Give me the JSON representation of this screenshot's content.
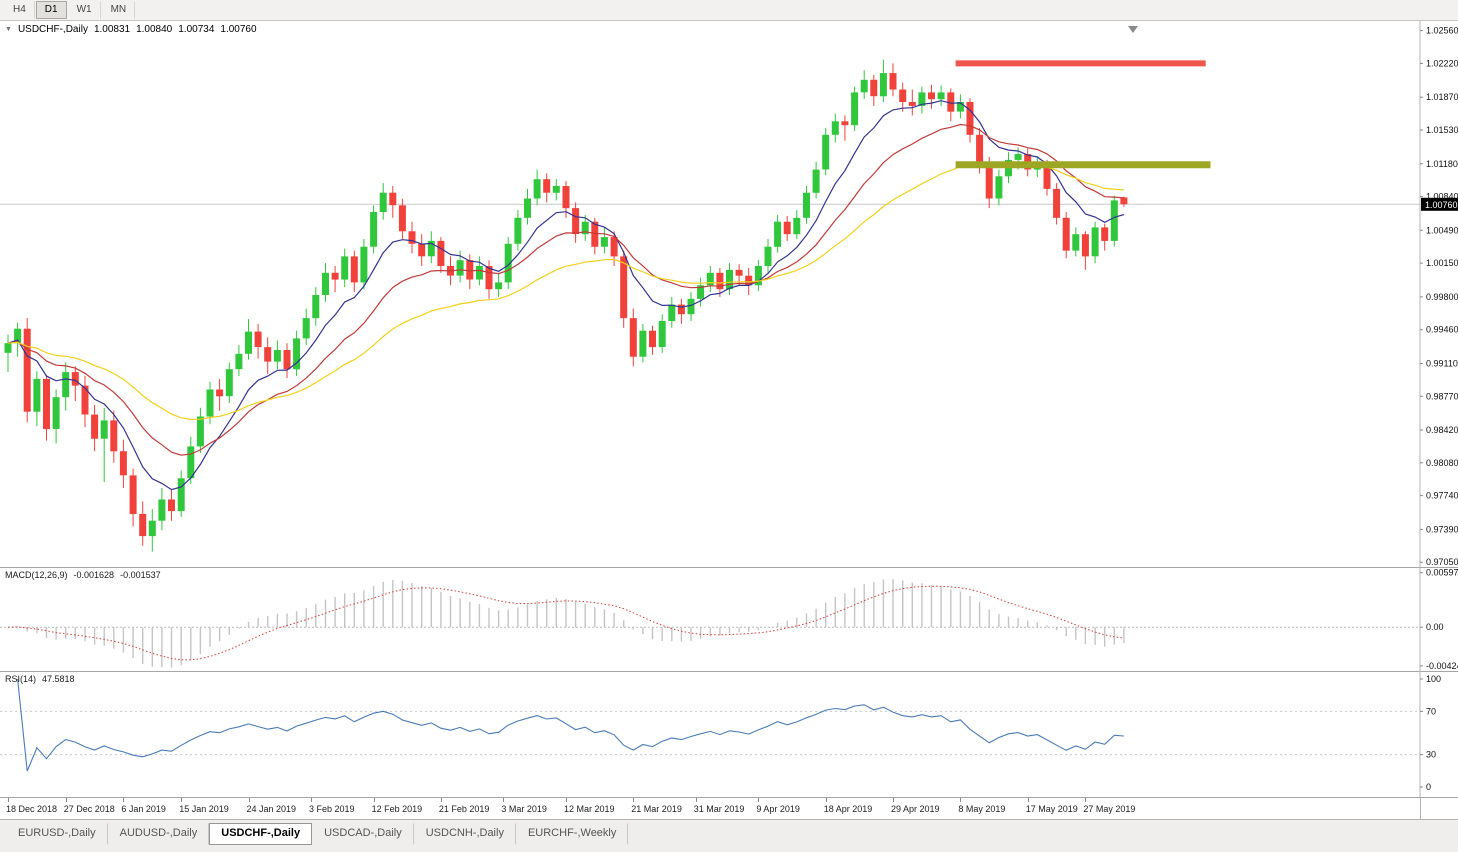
{
  "toolbar": {
    "timeframes": [
      {
        "label": "H4",
        "active": false
      },
      {
        "label": "D1",
        "active": true
      },
      {
        "label": "W1",
        "active": false
      },
      {
        "label": "MN",
        "active": false
      }
    ]
  },
  "chart_header": {
    "symbol": "USDCHF-,Daily",
    "open": "1.00831",
    "high": "1.00840",
    "low": "1.00734",
    "close": "1.00760"
  },
  "current_price": {
    "label": "1.00760",
    "value": 1.0076
  },
  "price_axis": {
    "labels": [
      "1.02560",
      "1.02220",
      "1.01870",
      "1.01530",
      "1.01180",
      "1.00840",
      "1.00490",
      "1.00150",
      "0.99800",
      "0.99460",
      "0.99110",
      "0.98770",
      "0.98420",
      "0.98080",
      "0.97740",
      "0.97390",
      "0.97050"
    ]
  },
  "macd": {
    "label": "MACD(12,26,9)",
    "main": "-0.001628",
    "signal": "-0.001537",
    "params": {
      "fast": 12,
      "slow": 26,
      "signal": 9
    },
    "scale": [
      {
        "text": "0.00597",
        "v": 0.00597
      },
      {
        "text": "0.00",
        "v": 0
      },
      {
        "text": "-0.00424",
        "v": -0.00424
      }
    ],
    "colors": {
      "histogram": "#c4c4c4",
      "signal_line": "#d43a3a"
    }
  },
  "rsi": {
    "label": "RSI(14)",
    "value": "47.5818",
    "period": 14,
    "color": "#4a7ab8",
    "levels": [
      70,
      30
    ],
    "scale": [
      {
        "text": "100",
        "v": 100
      },
      {
        "text": "70",
        "v": 70
      },
      {
        "text": "30",
        "v": 30
      },
      {
        "text": "0",
        "v": 0
      }
    ]
  },
  "date_axis": [
    {
      "label": "18 Dec 2018",
      "i": 0
    },
    {
      "label": "27 Dec 2018",
      "i": 6
    },
    {
      "label": "6 Jan 2019",
      "i": 12
    },
    {
      "label": "15 Jan 2019",
      "i": 18
    },
    {
      "label": "24 Jan 2019",
      "i": 25
    },
    {
      "label": "3 Feb 2019",
      "i": 31.5
    },
    {
      "label": "12 Feb 2019",
      "i": 38
    },
    {
      "label": "21 Feb 2019",
      "i": 45
    },
    {
      "label": "3 Mar 2019",
      "i": 51.5
    },
    {
      "label": "12 Mar 2019",
      "i": 58
    },
    {
      "label": "21 Mar 2019",
      "i": 65
    },
    {
      "label": "31 Mar 2019",
      "i": 71.5
    },
    {
      "label": "9 Apr 2019",
      "i": 78
    },
    {
      "label": "18 Apr 2019",
      "i": 85
    },
    {
      "label": "29 Apr 2019",
      "i": 92
    },
    {
      "label": "8 May 2019",
      "i": 99
    },
    {
      "label": "17 May 2019",
      "i": 106
    },
    {
      "label": "27 May 2019",
      "i": 112
    }
  ],
  "tabs": {
    "items": [
      {
        "label": "EURUSD-,Daily",
        "active": false
      },
      {
        "label": "AUDUSD-,Daily",
        "active": false
      },
      {
        "label": "USDCHF-,Daily",
        "active": true
      },
      {
        "label": "USDCAD-,Daily",
        "active": false
      },
      {
        "label": "USDCNH-,Daily",
        "active": false
      },
      {
        "label": "EURCHF-,Weekly",
        "active": false
      }
    ]
  },
  "chart_data": {
    "type": "candlestick",
    "symbol": "USDCHF",
    "timeframe": "Daily",
    "title": "USDCHF-,Daily",
    "y_range": [
      0.97,
      1.0266
    ],
    "up_color": "#30c73c",
    "down_color": "#f0413b",
    "moving_averages": [
      {
        "name": "ma-fast",
        "period": 8,
        "color": "#333392"
      },
      {
        "name": "ma-mid",
        "period": 17,
        "color": "#c23b3b"
      },
      {
        "name": "ma-slow",
        "period": 34,
        "color": "#f2cf1d"
      }
    ],
    "annotations": [
      {
        "name": "resistance-line",
        "price": 1.0222,
        "from_bar": 98.5,
        "to_bar": 124.5,
        "color": "#f0564d",
        "thickness": 6
      },
      {
        "name": "support-line",
        "price": 1.0117,
        "from_bar": 98.5,
        "to_bar": 125,
        "color": "#9ea723",
        "thickness": 7
      }
    ],
    "candles": [
      [
        0.9922,
        0.9941,
        0.9902,
        0.9932
      ],
      [
        0.9932,
        0.9953,
        0.9918,
        0.9947
      ],
      [
        0.9947,
        0.9958,
        0.985,
        0.9861
      ],
      [
        0.9861,
        0.9903,
        0.9846,
        0.9895
      ],
      [
        0.9895,
        0.9899,
        0.9831,
        0.9843
      ],
      [
        0.9843,
        0.9884,
        0.9828,
        0.9876
      ],
      [
        0.9876,
        0.9912,
        0.9862,
        0.9902
      ],
      [
        0.9902,
        0.9908,
        0.9872,
        0.9888
      ],
      [
        0.9888,
        0.9898,
        0.9845,
        0.9858
      ],
      [
        0.9858,
        0.9868,
        0.982,
        0.9833
      ],
      [
        0.9833,
        0.9865,
        0.9788,
        0.9852
      ],
      [
        0.9852,
        0.9862,
        0.9808,
        0.982
      ],
      [
        0.982,
        0.9832,
        0.9782,
        0.9795
      ],
      [
        0.9795,
        0.9802,
        0.9742,
        0.9755
      ],
      [
        0.9755,
        0.9768,
        0.9722,
        0.9732
      ],
      [
        0.9732,
        0.976,
        0.9716,
        0.9748
      ],
      [
        0.9748,
        0.9782,
        0.9738,
        0.977
      ],
      [
        0.977,
        0.978,
        0.9748,
        0.9758
      ],
      [
        0.9758,
        0.98,
        0.9752,
        0.9792
      ],
      [
        0.9792,
        0.9835,
        0.9786,
        0.9825
      ],
      [
        0.9825,
        0.9865,
        0.9818,
        0.9856
      ],
      [
        0.9856,
        0.9892,
        0.9848,
        0.9884
      ],
      [
        0.9884,
        0.9895,
        0.9862,
        0.9877
      ],
      [
        0.9877,
        0.9912,
        0.987,
        0.9905
      ],
      [
        0.9905,
        0.993,
        0.9898,
        0.9921
      ],
      [
        0.9921,
        0.9957,
        0.9915,
        0.9944
      ],
      [
        0.9944,
        0.9952,
        0.9916,
        0.9928
      ],
      [
        0.9928,
        0.9938,
        0.99,
        0.9913
      ],
      [
        0.9913,
        0.9935,
        0.9905,
        0.9925
      ],
      [
        0.9925,
        0.9932,
        0.9896,
        0.9905
      ],
      [
        0.9905,
        0.9945,
        0.9898,
        0.9937
      ],
      [
        0.9937,
        0.9968,
        0.993,
        0.9958
      ],
      [
        0.9958,
        0.999,
        0.995,
        0.9982
      ],
      [
        0.9982,
        1.0015,
        0.9975,
        1.0005
      ],
      [
        1.0005,
        1.0012,
        0.9985,
        0.9998
      ],
      [
        0.9998,
        1.003,
        0.999,
        1.0022
      ],
      [
        1.0022,
        1.0028,
        0.9985,
        0.9995
      ],
      [
        0.9995,
        1.004,
        0.9988,
        1.0032
      ],
      [
        1.0032,
        1.0075,
        1.0025,
        1.0068
      ],
      [
        1.0068,
        1.0098,
        1.006,
        1.0088
      ],
      [
        1.0088,
        1.0095,
        1.0062,
        1.0075
      ],
      [
        1.0075,
        1.0082,
        1.004,
        1.0048
      ],
      [
        1.0048,
        1.0058,
        1.0025,
        1.0035
      ],
      [
        1.0035,
        1.0045,
        1.0012,
        1.0022
      ],
      [
        1.0022,
        1.0048,
        1.0015,
        1.0038
      ],
      [
        1.0038,
        1.0042,
        1.0005,
        1.0012
      ],
      [
        1.0012,
        1.0022,
        0.9992,
        1.0002
      ],
      [
        1.0002,
        1.0028,
        0.9995,
        1.0018
      ],
      [
        1.0018,
        1.0024,
        0.9988,
        0.9998
      ],
      [
        0.9998,
        1.0022,
        0.9992,
        1.0012
      ],
      [
        1.0012,
        1.0018,
        0.9978,
        0.9988
      ],
      [
        0.9988,
        1.0005,
        0.998,
        0.9995
      ],
      [
        0.9995,
        1.0042,
        0.9988,
        1.0035
      ],
      [
        1.0035,
        1.007,
        1.0028,
        1.0062
      ],
      [
        1.0062,
        1.0092,
        1.0055,
        1.0082
      ],
      [
        1.0082,
        1.0112,
        1.0075,
        1.0102
      ],
      [
        1.0102,
        1.0108,
        1.0078,
        1.0088
      ],
      [
        1.0088,
        1.0102,
        1.008,
        1.0095
      ],
      [
        1.0095,
        1.01,
        1.0062,
        1.0072
      ],
      [
        1.0072,
        1.0078,
        1.0036,
        1.0045
      ],
      [
        1.0045,
        1.0065,
        1.0038,
        1.0058
      ],
      [
        1.0058,
        1.0062,
        1.0024,
        1.0032
      ],
      [
        1.0032,
        1.0052,
        1.0025,
        1.0042
      ],
      [
        1.0042,
        1.0048,
        1.0012,
        1.0022
      ],
      [
        1.0022,
        1.0028,
        0.9948,
        0.9958
      ],
      [
        0.9958,
        0.9968,
        0.9908,
        0.9918
      ],
      [
        0.9918,
        0.9952,
        0.9912,
        0.9945
      ],
      [
        0.9945,
        0.995,
        0.992,
        0.9928
      ],
      [
        0.9928,
        0.9962,
        0.9922,
        0.9955
      ],
      [
        0.9955,
        0.998,
        0.9948,
        0.9972
      ],
      [
        0.9972,
        0.9978,
        0.9952,
        0.9962
      ],
      [
        0.9962,
        0.9985,
        0.9955,
        0.9978
      ],
      [
        0.9978,
        1.0,
        0.997,
        0.9992
      ],
      [
        0.9992,
        1.0012,
        0.9985,
        1.0005
      ],
      [
        1.0005,
        1.001,
        0.998,
        0.9988
      ],
      [
        0.9988,
        1.0015,
        0.9982,
        1.0008
      ],
      [
        1.0008,
        1.0014,
        0.9992,
        1.0002
      ],
      [
        1.0002,
        1.001,
        0.9982,
        0.9992
      ],
      [
        0.9992,
        1.0018,
        0.9986,
        1.0012
      ],
      [
        1.0012,
        1.004,
        1.0005,
        1.0032
      ],
      [
        1.0032,
        1.0065,
        1.0026,
        1.0058
      ],
      [
        1.0058,
        1.0064,
        1.0038,
        1.0045
      ],
      [
        1.0045,
        1.007,
        1.004,
        1.0062
      ],
      [
        1.0062,
        1.0095,
        1.0056,
        1.0088
      ],
      [
        1.0088,
        1.012,
        1.0082,
        1.0112
      ],
      [
        1.0112,
        1.0155,
        1.0106,
        1.0148
      ],
      [
        1.0148,
        1.017,
        1.014,
        1.0162
      ],
      [
        1.0162,
        1.0168,
        1.0142,
        1.0158
      ],
      [
        1.0158,
        1.0198,
        1.0152,
        1.0192
      ],
      [
        1.0192,
        1.0215,
        1.0185,
        1.0205
      ],
      [
        1.0205,
        1.021,
        1.0178,
        1.0188
      ],
      [
        1.0188,
        1.0226,
        1.0182,
        1.0212
      ],
      [
        1.0212,
        1.0222,
        1.0188,
        1.0195
      ],
      [
        1.0195,
        1.0202,
        1.0172,
        1.0182
      ],
      [
        1.0182,
        1.0195,
        1.0168,
        1.0178
      ],
      [
        1.0178,
        1.0198,
        1.017,
        1.0192
      ],
      [
        1.0192,
        1.02,
        1.0175,
        1.0185
      ],
      [
        1.0185,
        1.0199,
        1.0178,
        1.0192
      ],
      [
        1.0192,
        1.0196,
        1.0162,
        1.0172
      ],
      [
        1.0172,
        1.019,
        1.0165,
        1.0182
      ],
      [
        1.0182,
        1.0186,
        1.014,
        1.0148
      ],
      [
        1.0148,
        1.0155,
        1.0108,
        1.0118
      ],
      [
        1.0118,
        1.0125,
        1.0072,
        1.0082
      ],
      [
        1.0082,
        1.0112,
        1.0075,
        1.0105
      ],
      [
        1.0105,
        1.013,
        1.0098,
        1.0122
      ],
      [
        1.0122,
        1.0135,
        1.0112,
        1.0128
      ],
      [
        1.0128,
        1.0134,
        1.0105,
        1.0112
      ],
      [
        1.0112,
        1.0126,
        1.0104,
        1.0118
      ],
      [
        1.0118,
        1.0122,
        1.0085,
        1.0092
      ],
      [
        1.0092,
        1.0098,
        1.0055,
        1.0062
      ],
      [
        1.0062,
        1.0068,
        1.002,
        1.0028
      ],
      [
        1.0028,
        1.0052,
        1.0022,
        1.0045
      ],
      [
        1.0045,
        1.0048,
        1.0008,
        1.0022
      ],
      [
        1.0022,
        1.0058,
        1.0015,
        1.0052
      ],
      [
        1.0052,
        1.0056,
        1.0028,
        1.0038
      ],
      [
        1.0038,
        1.0085,
        1.0032,
        1.008
      ],
      [
        1.00831,
        1.0084,
        1.00734,
        1.0076
      ]
    ]
  }
}
